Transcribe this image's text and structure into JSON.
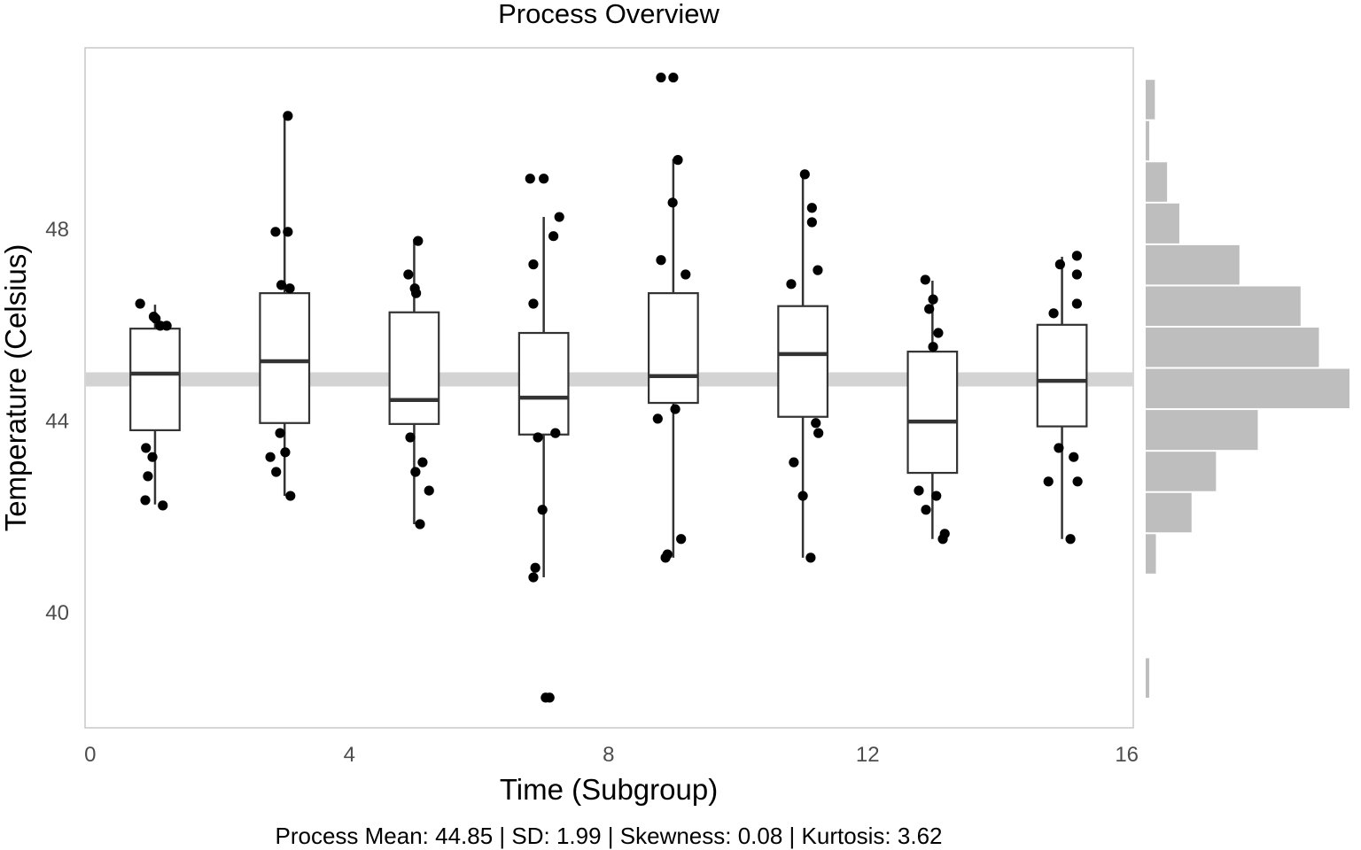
{
  "chart_data": {
    "type": "box",
    "title": "Process Overview",
    "xlabel": "Time (Subgroup)",
    "ylabel": "Temperature (Celsius)",
    "footer": "Process Mean: 44.85 | SD: 1.99 | Skewness: 0.08 | Kurtosis: 3.62",
    "xlim": [
      -0.08,
      16.1
    ],
    "ylim": [
      37.58,
      51.77
    ],
    "xticks": [
      0,
      4,
      8,
      12,
      16
    ],
    "yticks": [
      40,
      44,
      48
    ],
    "grid": false,
    "mean_line": 44.85,
    "colors": {
      "points": "#000000",
      "box": "#333333",
      "mean_band": "#d3d3d3",
      "histogram": "#bebebe",
      "panel_border": "#c8c8c8"
    },
    "boxes": [
      {
        "x": 1,
        "q1": 43.79,
        "median": 44.97,
        "q3": 45.91,
        "lower": 42.24,
        "upper": 46.41
      },
      {
        "x": 3,
        "q1": 43.94,
        "median": 45.23,
        "q3": 46.65,
        "lower": 42.42,
        "upper": 50.35
      },
      {
        "x": 5,
        "q1": 43.92,
        "median": 44.42,
        "q3": 46.25,
        "lower": 41.83,
        "upper": 47.78
      },
      {
        "x": 7,
        "q1": 43.7,
        "median": 44.47,
        "q3": 45.82,
        "lower": 40.72,
        "upper": 48.24
      },
      {
        "x": 9,
        "q1": 44.36,
        "median": 44.92,
        "q3": 46.65,
        "lower": 41.13,
        "upper": 49.45
      },
      {
        "x": 11,
        "q1": 44.07,
        "median": 45.38,
        "q3": 46.38,
        "lower": 41.13,
        "upper": 49.13
      },
      {
        "x": 13,
        "q1": 42.9,
        "median": 43.97,
        "q3": 45.43,
        "lower": 41.52,
        "upper": 46.91
      },
      {
        "x": 15,
        "q1": 43.87,
        "median": 44.82,
        "q3": 45.99,
        "lower": 41.52,
        "upper": 47.41
      }
    ],
    "points": [
      [
        0.77,
        46.43
      ],
      [
        0.98,
        46.16
      ],
      [
        1.08,
        45.97
      ],
      [
        1.18,
        45.97
      ],
      [
        1.01,
        46.12
      ],
      [
        0.86,
        43.42
      ],
      [
        0.96,
        43.23
      ],
      [
        0.89,
        42.83
      ],
      [
        0.85,
        42.33
      ],
      [
        1.12,
        42.22
      ],
      [
        2.86,
        47.93
      ],
      [
        3.05,
        47.93
      ],
      [
        2.95,
        46.82
      ],
      [
        3.08,
        46.75
      ],
      [
        2.93,
        43.73
      ],
      [
        3.01,
        43.33
      ],
      [
        2.78,
        43.23
      ],
      [
        2.87,
        42.92
      ],
      [
        3.09,
        42.42
      ],
      [
        3.05,
        50.35
      ],
      [
        5.06,
        47.74
      ],
      [
        4.91,
        47.04
      ],
      [
        5.01,
        46.75
      ],
      [
        5.03,
        46.65
      ],
      [
        4.94,
        43.64
      ],
      [
        5.13,
        43.12
      ],
      [
        5.02,
        42.92
      ],
      [
        5.23,
        42.53
      ],
      [
        5.09,
        41.83
      ],
      [
        6.79,
        49.04
      ],
      [
        7.0,
        49.04
      ],
      [
        7.24,
        48.24
      ],
      [
        7.15,
        47.84
      ],
      [
        6.84,
        47.25
      ],
      [
        6.84,
        46.43
      ],
      [
        6.91,
        43.64
      ],
      [
        7.18,
        43.73
      ],
      [
        6.98,
        42.13
      ],
      [
        6.87,
        40.92
      ],
      [
        6.84,
        40.72
      ],
      [
        7.03,
        38.21
      ],
      [
        7.09,
        38.21
      ],
      [
        8.81,
        51.15
      ],
      [
        9.0,
        51.15
      ],
      [
        9.07,
        49.43
      ],
      [
        8.99,
        48.54
      ],
      [
        8.81,
        47.34
      ],
      [
        9.19,
        47.04
      ],
      [
        8.76,
        44.03
      ],
      [
        9.03,
        44.23
      ],
      [
        9.12,
        41.52
      ],
      [
        8.88,
        41.13
      ],
      [
        8.91,
        41.2
      ],
      [
        11.03,
        49.13
      ],
      [
        11.14,
        48.43
      ],
      [
        11.14,
        48.13
      ],
      [
        11.23,
        47.13
      ],
      [
        10.82,
        46.84
      ],
      [
        11.2,
        43.94
      ],
      [
        11.24,
        43.73
      ],
      [
        10.86,
        43.12
      ],
      [
        11.0,
        42.42
      ],
      [
        11.12,
        41.13
      ],
      [
        12.89,
        46.93
      ],
      [
        13.01,
        46.52
      ],
      [
        12.95,
        46.32
      ],
      [
        13.09,
        45.82
      ],
      [
        13.01,
        45.53
      ],
      [
        12.79,
        42.53
      ],
      [
        13.06,
        42.42
      ],
      [
        12.9,
        42.13
      ],
      [
        13.19,
        41.63
      ],
      [
        13.16,
        41.52
      ],
      [
        15.23,
        47.43
      ],
      [
        14.97,
        47.25
      ],
      [
        15.23,
        47.04
      ],
      [
        14.87,
        46.23
      ],
      [
        15.23,
        46.43
      ],
      [
        14.95,
        43.42
      ],
      [
        15.18,
        43.23
      ],
      [
        14.79,
        42.72
      ],
      [
        15.24,
        42.72
      ],
      [
        15.13,
        41.52
      ]
    ],
    "marginal_histogram": {
      "orientation": "horizontal",
      "bin_edges": [
        38.19,
        39.05,
        39.91,
        40.78,
        41.64,
        42.5,
        43.36,
        44.23,
        45.09,
        45.95,
        46.81,
        47.67,
        48.54,
        49.4,
        50.26,
        51.12
      ],
      "values": [
        0.35,
        0,
        0,
        1,
        4.5,
        6.9,
        11,
        20,
        17,
        15.2,
        9.2,
        3.3,
        2.1,
        0.35,
        0.9
      ]
    }
  }
}
